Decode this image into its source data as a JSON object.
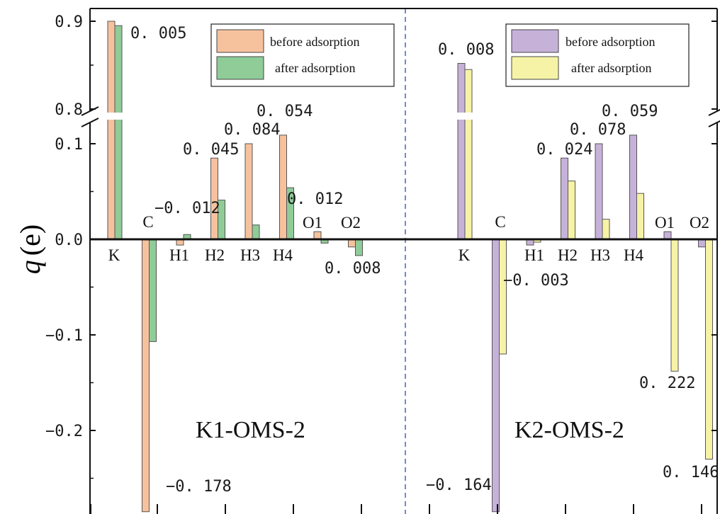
{
  "chart_data": {
    "type": "bar",
    "ylabel_symbol": "q",
    "ylabel_unit": "(e)",
    "yticks_lower": [
      "0.0",
      "−0.1",
      "−0.2"
    ],
    "yticks_upper": [
      "0.1",
      "0.8",
      "0.9"
    ],
    "y_break": [
      0.12,
      0.78
    ],
    "ylim": [
      -0.285,
      0.91
    ],
    "panels": [
      {
        "title": "K1-OMS-2",
        "categories": [
          "K",
          "C",
          "H1",
          "H2",
          "H3",
          "H4",
          "O1",
          "O2"
        ],
        "series": [
          {
            "name": "before adsorption",
            "color": "#f6c29e",
            "values": [
              0.9,
              -0.285,
              -0.006,
              0.085,
              0.1,
              0.109,
              0.008,
              -0.008
            ]
          },
          {
            "name": "after adsorption",
            "color": "#8fcc98",
            "values": [
              0.895,
              -0.107,
              0.005,
              0.041,
              0.015,
              0.054,
              -0.004,
              -0.017
            ]
          }
        ],
        "annotations": [
          "0. 005",
          "−0. 012",
          "0. 045",
          "0. 084",
          "0. 054",
          "0. 012",
          "0. 008",
          "−0. 178"
        ]
      },
      {
        "title": "K2-OMS-2",
        "categories": [
          "K",
          "C",
          "H1",
          "H2",
          "H3",
          "H4",
          "O1",
          "O2"
        ],
        "series": [
          {
            "name": "before adsorption",
            "color": "#c6b2d9",
            "values": [
              0.852,
              -0.285,
              -0.006,
              0.085,
              0.1,
              0.109,
              0.008,
              -0.008
            ]
          },
          {
            "name": "after adsorption",
            "color": "#f7f3a6",
            "values": [
              0.845,
              -0.12,
              -0.003,
              0.061,
              0.021,
              0.048,
              -0.138,
              -0.23
            ]
          }
        ],
        "annotations": [
          "0. 008",
          "0. 024",
          "0. 078",
          "0. 059",
          "−0. 003",
          "0. 222",
          "−0. 164",
          "0. 146"
        ]
      }
    ],
    "legend_placement": "top-right of each panel"
  }
}
